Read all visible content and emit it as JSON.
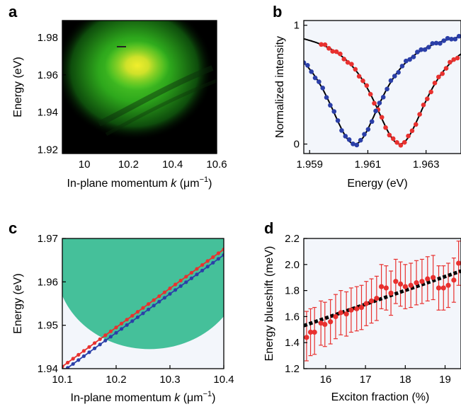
{
  "colors": {
    "red": "#e8312f",
    "blue": "#2b3fa8",
    "teal": "#45c09a",
    "fit": "#000000",
    "panel_bg_c": "#f3f6fb",
    "panel_bg_d": "#f3f6fb"
  },
  "chart_data": [
    {
      "panel": "a",
      "type": "heatmap",
      "xlabel_prefix": "In-plane momentum ",
      "xlabel_var": "k",
      "xlabel_unit": " (μm",
      "xlabel_exp": "−1",
      "xlabel_close": ")",
      "ylabel": "Energy (eV)",
      "xlim": [
        9.9,
        10.6
      ],
      "ylim": [
        1.918,
        1.989
      ],
      "xticks": [
        10,
        10.2,
        10.4,
        10.6
      ],
      "xtick_labels": [
        "10",
        "10.2",
        "10.4",
        "10.6"
      ],
      "yticks": [
        1.92,
        1.94,
        1.96,
        1.98
      ],
      "ytick_labels": [
        "1.92",
        "1.94",
        "1.96",
        "1.98"
      ],
      "hotspot_center": {
        "x": 10.24,
        "y": 1.965
      },
      "colormap": "black-green-yellow"
    },
    {
      "panel": "b",
      "type": "scatter",
      "xlabel": "Energy (eV)",
      "ylabel": "Normalized intensity",
      "xlim": [
        1.9588,
        1.9642
      ],
      "ylim": [
        -0.08,
        1.04
      ],
      "xticks": [
        1.959,
        1.961,
        1.963
      ],
      "xtick_labels": [
        "1.959",
        "1.961",
        "1.963"
      ],
      "yticks": [
        0,
        1
      ],
      "ytick_labels": [
        "0",
        "1"
      ],
      "series": [
        {
          "color": "red",
          "center": 1.9621,
          "width": 0.0015,
          "x_start": 1.9594,
          "x_end": 1.9642,
          "step": 0.00013
        },
        {
          "color": "blue",
          "center": 1.96055,
          "width": 0.0015,
          "x_start": 1.9588,
          "x_end": 1.9642,
          "step": 0.00013
        }
      ],
      "fits": "black solid Lorentzian-like fits over each series"
    },
    {
      "panel": "c",
      "type": "line",
      "xlabel_prefix": "In-plane momentum ",
      "xlabel_var": "k",
      "xlabel_unit": " (μm",
      "xlabel_exp": "−1",
      "xlabel_close": ")",
      "ylabel": "Energy (eV)",
      "xlim": [
        10.1,
        10.4
      ],
      "ylim": [
        1.94,
        1.97
      ],
      "xticks": [
        10.1,
        10.2,
        10.3,
        10.4
      ],
      "xtick_labels": [
        "10.1",
        "10.2",
        "10.3",
        "10.4"
      ],
      "yticks": [
        1.94,
        1.95,
        1.96,
        1.97
      ],
      "ytick_labels": [
        "1.94",
        "1.95",
        "1.96",
        "1.97"
      ],
      "region": {
        "shape": "ellipse",
        "color": "teal",
        "cx": 10.262,
        "cy": 1.9635,
        "rx": 0.173,
        "ry": 0.019
      },
      "series": [
        {
          "color": "red",
          "x0": 10.1,
          "y0": 1.9405,
          "x1": 10.4,
          "y1": 1.9675,
          "n": 31
        },
        {
          "color": "blue",
          "x0": 10.1,
          "y0": 1.9393,
          "x1": 10.4,
          "y1": 1.9662,
          "n": 31
        }
      ]
    },
    {
      "panel": "d",
      "type": "scatter",
      "xlabel": "Exciton fraction (%)",
      "ylabel": "Energy blueshift (meV)",
      "xlim": [
        15.45,
        19.4
      ],
      "ylim": [
        1.2,
        2.2
      ],
      "xticks": [
        16,
        17,
        18,
        19
      ],
      "xtick_labels": [
        "16",
        "17",
        "18",
        "19"
      ],
      "yticks": [
        1.2,
        1.4,
        1.6,
        1.8,
        2.0,
        2.2
      ],
      "ytick_labels": [
        "1.2",
        "1.4",
        "1.6",
        "1.8",
        "2.0",
        "2.2"
      ],
      "trend": {
        "x0": 15.45,
        "y0": 1.53,
        "x1": 19.4,
        "y1": 1.95,
        "style": "dotted"
      },
      "points": [
        {
          "x": 15.52,
          "y": 1.44,
          "lo": 1.26,
          "hi": 1.64
        },
        {
          "x": 15.62,
          "y": 1.48,
          "lo": 1.3,
          "hi": 1.66
        },
        {
          "x": 15.72,
          "y": 1.48,
          "lo": 1.31,
          "hi": 1.67
        },
        {
          "x": 15.88,
          "y": 1.55,
          "lo": 1.38,
          "hi": 1.72
        },
        {
          "x": 15.98,
          "y": 1.54,
          "lo": 1.37,
          "hi": 1.71
        },
        {
          "x": 16.12,
          "y": 1.56,
          "lo": 1.39,
          "hi": 1.73
        },
        {
          "x": 16.25,
          "y": 1.6,
          "lo": 1.43,
          "hi": 1.77
        },
        {
          "x": 16.38,
          "y": 1.63,
          "lo": 1.46,
          "hi": 1.8
        },
        {
          "x": 16.52,
          "y": 1.62,
          "lo": 1.45,
          "hi": 1.79
        },
        {
          "x": 16.64,
          "y": 1.65,
          "lo": 1.48,
          "hi": 1.82
        },
        {
          "x": 16.78,
          "y": 1.66,
          "lo": 1.49,
          "hi": 1.83
        },
        {
          "x": 16.9,
          "y": 1.67,
          "lo": 1.5,
          "hi": 1.84
        },
        {
          "x": 17.02,
          "y": 1.7,
          "lo": 1.53,
          "hi": 1.87
        },
        {
          "x": 17.15,
          "y": 1.72,
          "lo": 1.55,
          "hi": 1.89
        },
        {
          "x": 17.28,
          "y": 1.74,
          "lo": 1.57,
          "hi": 1.91
        },
        {
          "x": 17.4,
          "y": 1.83,
          "lo": 1.66,
          "hi": 2.0
        },
        {
          "x": 17.52,
          "y": 1.82,
          "lo": 1.65,
          "hi": 1.99
        },
        {
          "x": 17.64,
          "y": 1.78,
          "lo": 1.61,
          "hi": 1.95
        },
        {
          "x": 17.76,
          "y": 1.87,
          "lo": 1.7,
          "hi": 2.04
        },
        {
          "x": 17.88,
          "y": 1.85,
          "lo": 1.68,
          "hi": 2.02
        },
        {
          "x": 18.0,
          "y": 1.83,
          "lo": 1.66,
          "hi": 2.0
        },
        {
          "x": 18.14,
          "y": 1.84,
          "lo": 1.67,
          "hi": 2.01
        },
        {
          "x": 18.28,
          "y": 1.86,
          "lo": 1.69,
          "hi": 2.03
        },
        {
          "x": 18.42,
          "y": 1.87,
          "lo": 1.7,
          "hi": 2.04
        },
        {
          "x": 18.56,
          "y": 1.89,
          "lo": 1.72,
          "hi": 2.06
        },
        {
          "x": 18.7,
          "y": 1.9,
          "lo": 1.73,
          "hi": 2.07
        },
        {
          "x": 18.84,
          "y": 1.82,
          "lo": 1.65,
          "hi": 1.99
        },
        {
          "x": 18.96,
          "y": 1.82,
          "lo": 1.65,
          "hi": 1.99
        },
        {
          "x": 19.08,
          "y": 1.84,
          "lo": 1.67,
          "hi": 2.01
        },
        {
          "x": 19.22,
          "y": 1.88,
          "lo": 1.71,
          "hi": 2.05
        },
        {
          "x": 19.34,
          "y": 2.01,
          "lo": 1.84,
          "hi": 2.18
        }
      ]
    }
  ]
}
